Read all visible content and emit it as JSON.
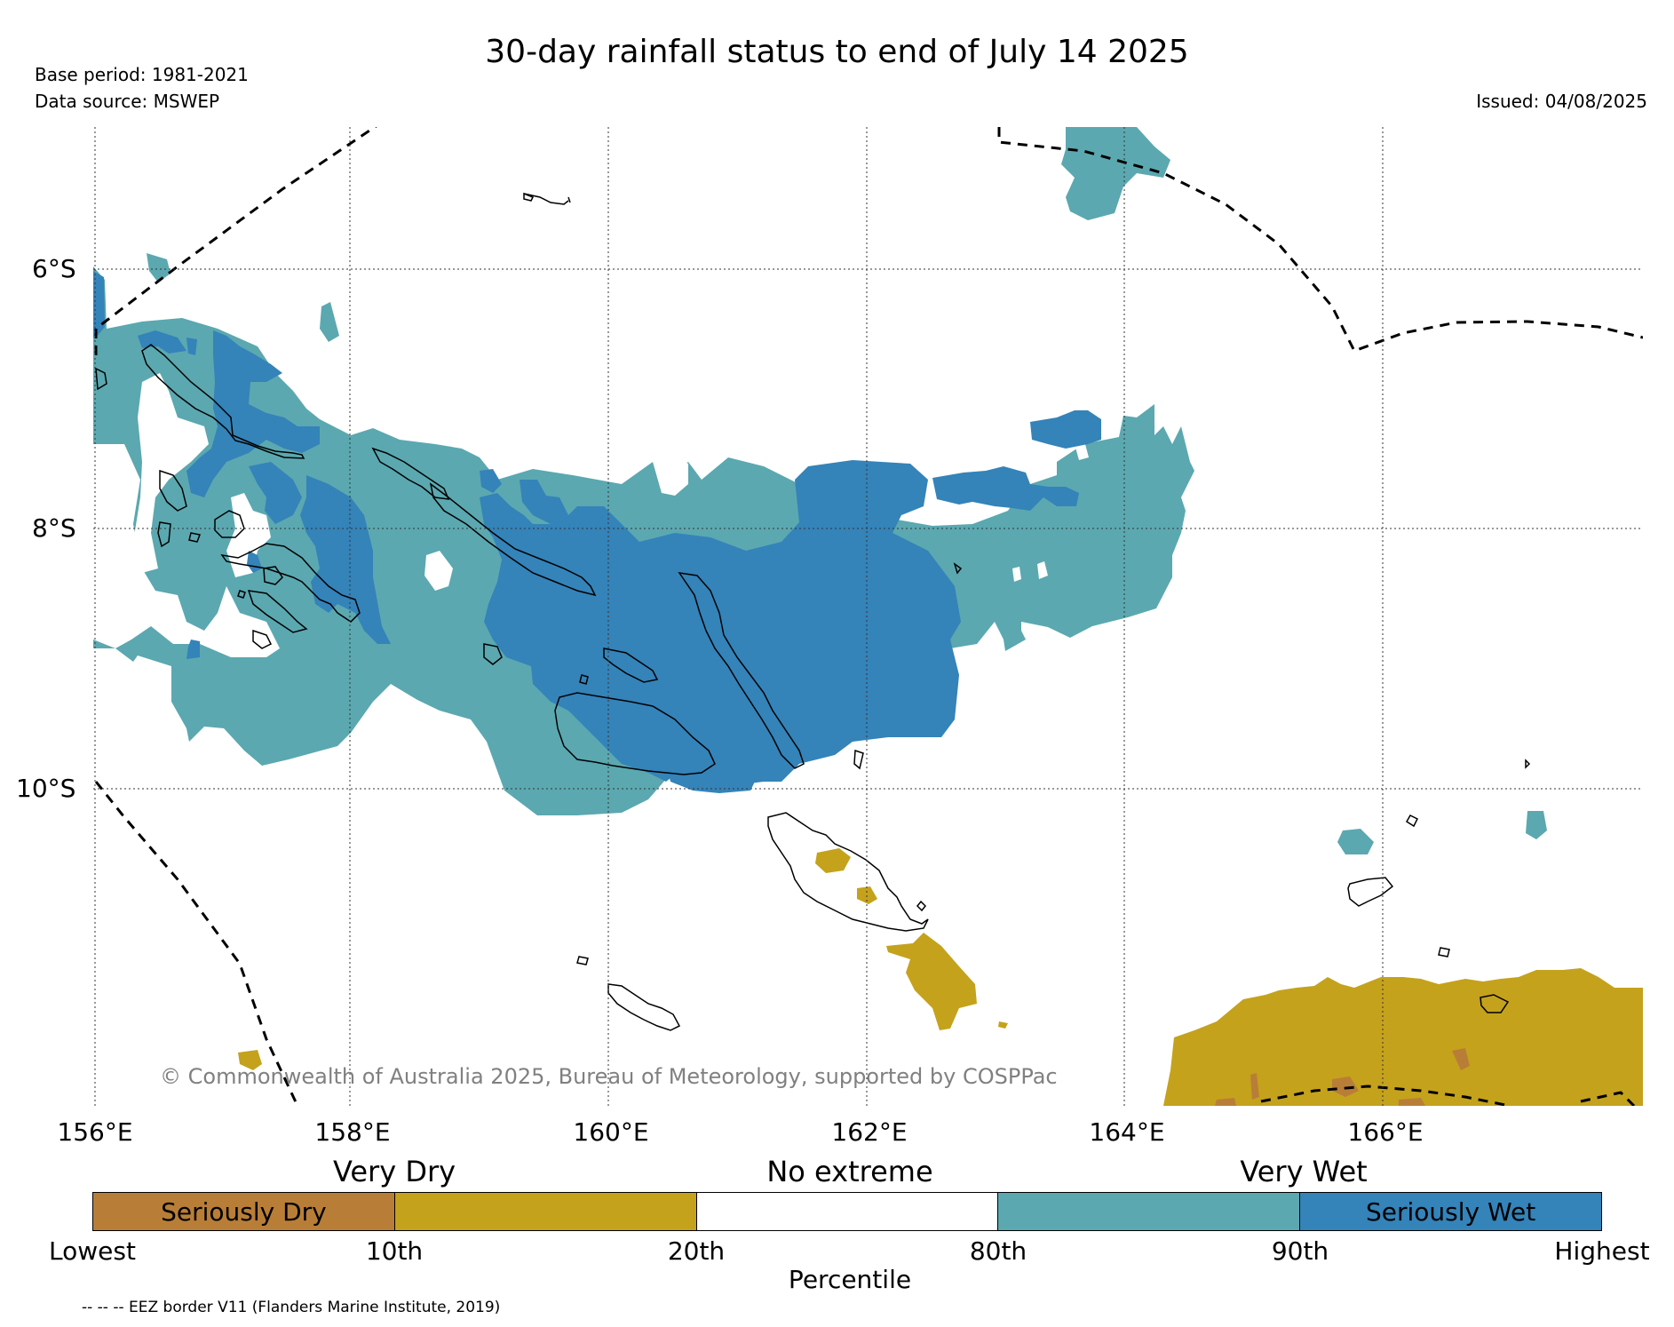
{
  "header": {
    "title": "30-day rainfall status to end of July 14 2025",
    "base_period": "Base period: 1981-2021",
    "data_source": "Data source: MSWEP",
    "issued": "Issued: 04/08/2025"
  },
  "map": {
    "lat_labels": [
      "6°S",
      "8°S",
      "10°S"
    ],
    "lon_labels": [
      "156°E",
      "158°E",
      "160°E",
      "162°E",
      "164°E",
      "166°E"
    ],
    "credit": "© Commonwealth of Australia 2025, Bureau of Meteorology, supported by COSPPac",
    "colors": {
      "seriously_dry": "#b87e38",
      "very_dry": "#c4a21c",
      "no_extreme": "#ffffff",
      "very_wet": "#5ba8b0",
      "seriously_wet": "#3483b9"
    }
  },
  "legend": {
    "categories": [
      "Very Dry",
      "No extreme",
      "Very Wet"
    ],
    "segments": [
      {
        "label": "Seriously Dry",
        "color": "#b87e38"
      },
      {
        "label": "",
        "color": "#c4a21c"
      },
      {
        "label": "",
        "color": "#ffffff"
      },
      {
        "label": "",
        "color": "#5ba8b0"
      },
      {
        "label": "Seriously Wet",
        "color": "#3483b9"
      }
    ],
    "percentile_ticks": [
      "Lowest",
      "10th",
      "20th",
      "80th",
      "90th",
      "Highest"
    ],
    "axis_label": "Percentile",
    "eez_note": "-- -- -- EEZ border V11 (Flanders Marine Institute, 2019)"
  }
}
